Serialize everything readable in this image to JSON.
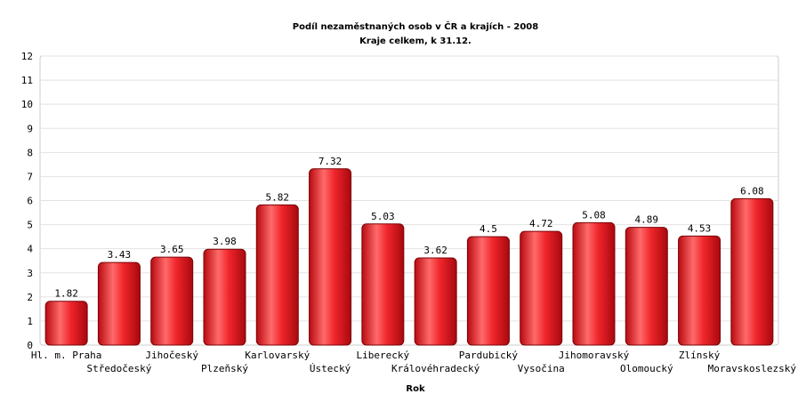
{
  "chart_data": {
    "type": "bar",
    "title": "Podíl nezaměstnaných osob v ČR a krajích - 2008",
    "subtitle": "Kraje celkem, k 31.12.",
    "xlabel": "Rok",
    "ylabel": "",
    "ylim": [
      0,
      12
    ],
    "yticks": [
      0,
      1,
      2,
      3,
      4,
      5,
      6,
      7,
      8,
      9,
      10,
      11,
      12
    ],
    "grid": true,
    "categories": [
      "Hl. m. Praha",
      "Středočeský",
      "Jihočeský",
      "Plzeňský",
      "Karlovarský",
      "Ústecký",
      "Liberecký",
      "Královéhradecký",
      "Pardubický",
      "Vysočina",
      "Jihomoravský",
      "Olomoucký",
      "Zlínský",
      "Moravskoslezský"
    ],
    "values": [
      1.82,
      3.43,
      3.65,
      3.98,
      5.82,
      7.32,
      5.03,
      3.62,
      4.5,
      4.72,
      5.08,
      4.89,
      4.53,
      6.08
    ],
    "value_labels": [
      "1.82",
      "3.43",
      "3.65",
      "3.98",
      "5.82",
      "7.32",
      "5.03",
      "3.62",
      "4.5",
      "4.72",
      "5.08",
      "4.89",
      "4.53",
      "6.08"
    ],
    "bar_color": "#e8151b"
  }
}
